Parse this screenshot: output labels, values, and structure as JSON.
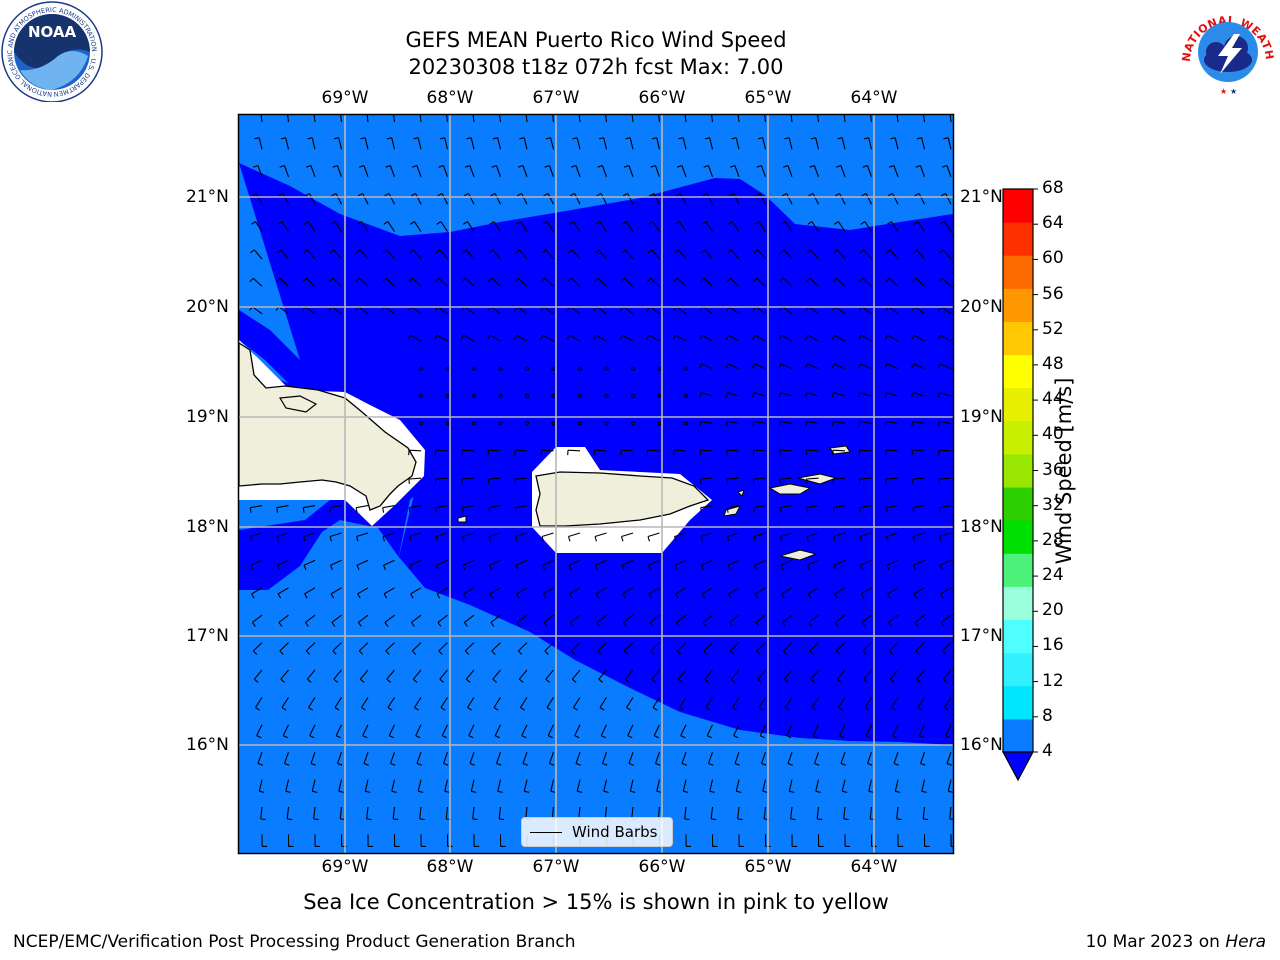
{
  "title": {
    "line1": "GEFS MEAN Puerto Rico Wind Speed",
    "line2": "20230308 t18z 072h fcst   Max: 7.00"
  },
  "axes": {
    "lon_labels": [
      "69°W",
      "68°W",
      "67°W",
      "66°W",
      "65°W",
      "64°W"
    ],
    "lat_labels": [
      "21°N",
      "20°N",
      "19°N",
      "18°N",
      "17°N",
      "16°N"
    ],
    "lon_range": [
      -70.0,
      -63.25
    ],
    "lat_range": [
      15.0,
      21.75
    ],
    "grid": true
  },
  "legend": {
    "label": "Wind Barbs"
  },
  "colorbar": {
    "label": "Wind Speed [m/s]",
    "ticks": [
      "4",
      "8",
      "12",
      "16",
      "20",
      "24",
      "28",
      "32",
      "36",
      "40",
      "44",
      "48",
      "52",
      "56",
      "60",
      "64",
      "68"
    ],
    "colors": [
      "#0a7cff",
      "#00e6ff",
      "#33f0ff",
      "#4fffff",
      "#99ffdd",
      "#4cf27a",
      "#00e000",
      "#2ccf00",
      "#99e600",
      "#c8ee00",
      "#e6f000",
      "#ffff00",
      "#ffc800",
      "#ff9800",
      "#ff6a00",
      "#ff3000",
      "#ff0000"
    ],
    "underflow_color": "#0000ff"
  },
  "map_colors": {
    "band_4_8": "#0a7cff",
    "below_4": "#0000ff",
    "land": "#efefdb",
    "masked": "#ffffff"
  },
  "caption": "Sea Ice Concentration > 15% is shown in pink to yellow",
  "footer": {
    "left": "NCEP/EMC/Verification Post Processing Product Generation Branch",
    "right_prefix": "10 Mar 2023 on ",
    "right_machine": "Hera"
  },
  "logos": {
    "noaa": {
      "text": "NOAA",
      "ring_text": "NATIONAL OCEANIC AND ATMOSPHERIC ADMINISTRATION · U.S. DEPARTMENT OF COMMERCE"
    },
    "nws": {
      "ring_text": "NATIONAL WEATHER SERVICE"
    }
  }
}
